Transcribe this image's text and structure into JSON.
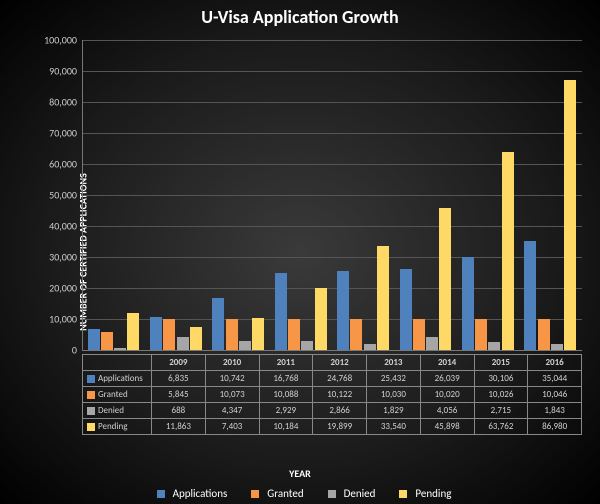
{
  "chart": {
    "type": "bar",
    "title": "U-Visa Application Growth",
    "title_fontsize": 18,
    "ylabel": "NUMBER OF CERTIFIED APPLICATIONS",
    "xlabel": "YEAR",
    "axis_label_fontsize": 10,
    "tick_fontsize": 10,
    "background": "radial-gradient #3a3a3a→#000",
    "grid_color": "#555555",
    "axis_color": "#777777",
    "text_color": "#d0d0d0",
    "ylim": [
      0,
      100000
    ],
    "ytick_step": 10000,
    "categories": [
      "2009",
      "2010",
      "2011",
      "2012",
      "2013",
      "2014",
      "2015",
      "2016"
    ],
    "series": [
      {
        "name": "Applications",
        "color": "#4f81bd",
        "values": [
          6835,
          10742,
          16768,
          24768,
          25432,
          26039,
          30106,
          35044
        ]
      },
      {
        "name": "Granted",
        "color": "#f79646",
        "values": [
          5845,
          10073,
          10088,
          10122,
          10030,
          10020,
          10026,
          10046
        ]
      },
      {
        "name": "Denied",
        "color": "#a6a6a6",
        "values": [
          688,
          4347,
          2929,
          2866,
          1829,
          4056,
          2715,
          1843
        ]
      },
      {
        "name": "Pending",
        "color": "#ffd966",
        "values": [
          11863,
          7403,
          10184,
          19899,
          33540,
          45898,
          63762,
          86980
        ]
      }
    ],
    "legend_position": "bottom",
    "bar_group_gap": 0.15,
    "bar_gap": 0.02
  }
}
